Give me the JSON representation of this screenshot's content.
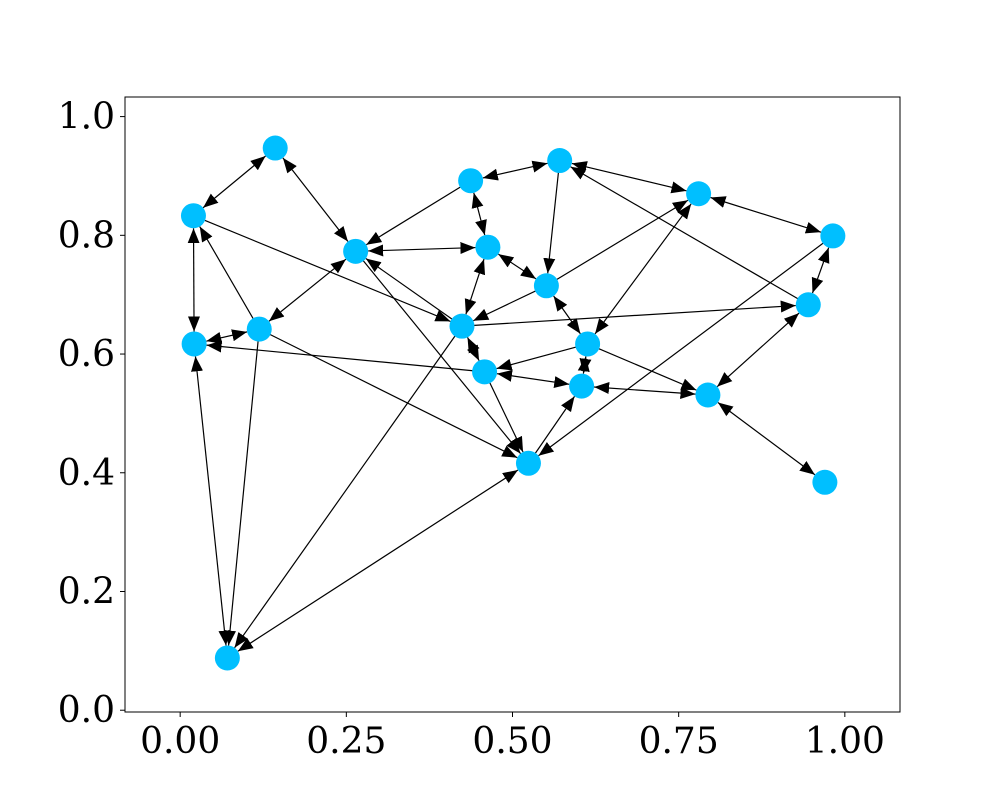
{
  "chart_data": {
    "type": "network",
    "title": "",
    "xlabel": "",
    "ylabel": "",
    "xlim": [
      -0.083,
      1.083
    ],
    "ylim": [
      -0.003,
      1.033
    ],
    "x_ticks": [
      0.0,
      0.25,
      0.5,
      0.75,
      1.0
    ],
    "x_tick_labels": [
      "0.00",
      "0.25",
      "0.50",
      "0.75",
      "1.00"
    ],
    "y_ticks": [
      0.0,
      0.2,
      0.4,
      0.6,
      0.8,
      1.0
    ],
    "y_tick_labels": [
      "0.0",
      "0.2",
      "0.4",
      "0.6",
      "0.8",
      "1.0"
    ],
    "grid": false,
    "node_color": "#00bfff",
    "edge_color": "#000000",
    "nodes": [
      {
        "id": "A",
        "x": 0.143,
        "y": 0.947
      },
      {
        "id": "B",
        "x": 0.02,
        "y": 0.833
      },
      {
        "id": "C",
        "x": 0.264,
        "y": 0.773
      },
      {
        "id": "D",
        "x": 0.437,
        "y": 0.892
      },
      {
        "id": "E",
        "x": 0.571,
        "y": 0.926
      },
      {
        "id": "F",
        "x": 0.78,
        "y": 0.87
      },
      {
        "id": "G",
        "x": 0.982,
        "y": 0.799
      },
      {
        "id": "H",
        "x": 0.463,
        "y": 0.78
      },
      {
        "id": "I",
        "x": 0.551,
        "y": 0.715
      },
      {
        "id": "J",
        "x": 0.945,
        "y": 0.683
      },
      {
        "id": "K",
        "x": 0.021,
        "y": 0.617
      },
      {
        "id": "L",
        "x": 0.119,
        "y": 0.642
      },
      {
        "id": "M",
        "x": 0.424,
        "y": 0.647
      },
      {
        "id": "N",
        "x": 0.613,
        "y": 0.617
      },
      {
        "id": "O",
        "x": 0.458,
        "y": 0.57
      },
      {
        "id": "P",
        "x": 0.604,
        "y": 0.546
      },
      {
        "id": "Q",
        "x": 0.794,
        "y": 0.531
      },
      {
        "id": "R",
        "x": 0.524,
        "y": 0.416
      },
      {
        "id": "S",
        "x": 0.97,
        "y": 0.384
      },
      {
        "id": "T",
        "x": 0.071,
        "y": 0.088
      }
    ],
    "edges": [
      {
        "source": "A",
        "target": "B",
        "both": true
      },
      {
        "source": "A",
        "target": "C",
        "both": true
      },
      {
        "source": "B",
        "target": "K",
        "both": true
      },
      {
        "source": "B",
        "target": "M",
        "both": false
      },
      {
        "source": "L",
        "target": "B",
        "both": false
      },
      {
        "source": "L",
        "target": "K",
        "both": true
      },
      {
        "source": "L",
        "target": "C",
        "both": true
      },
      {
        "source": "L",
        "target": "T",
        "both": false
      },
      {
        "source": "L",
        "target": "R",
        "both": false
      },
      {
        "source": "D",
        "target": "C",
        "both": false
      },
      {
        "source": "D",
        "target": "E",
        "both": true
      },
      {
        "source": "D",
        "target": "H",
        "both": true
      },
      {
        "source": "E",
        "target": "F",
        "both": true
      },
      {
        "source": "E",
        "target": "I",
        "both": false
      },
      {
        "source": "J",
        "target": "E",
        "both": false
      },
      {
        "source": "F",
        "target": "G",
        "both": true
      },
      {
        "source": "F",
        "target": "N",
        "both": true
      },
      {
        "source": "C",
        "target": "H",
        "both": true
      },
      {
        "source": "H",
        "target": "I",
        "both": true
      },
      {
        "source": "H",
        "target": "M",
        "both": true
      },
      {
        "source": "I",
        "target": "F",
        "both": false
      },
      {
        "source": "I",
        "target": "M",
        "both": false
      },
      {
        "source": "I",
        "target": "N",
        "both": true
      },
      {
        "source": "G",
        "target": "J",
        "both": true
      },
      {
        "source": "G",
        "target": "R",
        "both": false
      },
      {
        "source": "M",
        "target": "C",
        "both": false
      },
      {
        "source": "M",
        "target": "J",
        "both": false
      },
      {
        "source": "M",
        "target": "O",
        "both": true
      },
      {
        "source": "M",
        "target": "T",
        "both": false
      },
      {
        "source": "O",
        "target": "K",
        "both": false
      },
      {
        "source": "O",
        "target": "R",
        "both": false
      },
      {
        "source": "N",
        "target": "O",
        "both": false
      },
      {
        "source": "O",
        "target": "P",
        "both": true
      },
      {
        "source": "N",
        "target": "P",
        "both": true
      },
      {
        "source": "N",
        "target": "Q",
        "both": false
      },
      {
        "source": "P",
        "target": "Q",
        "both": true
      },
      {
        "source": "J",
        "target": "Q",
        "both": true
      },
      {
        "source": "Q",
        "target": "S",
        "both": true
      },
      {
        "source": "R",
        "target": "P",
        "both": false
      },
      {
        "source": "R",
        "target": "T",
        "both": true
      },
      {
        "source": "C",
        "target": "R",
        "both": false
      },
      {
        "source": "K",
        "target": "T",
        "both": true
      }
    ]
  }
}
